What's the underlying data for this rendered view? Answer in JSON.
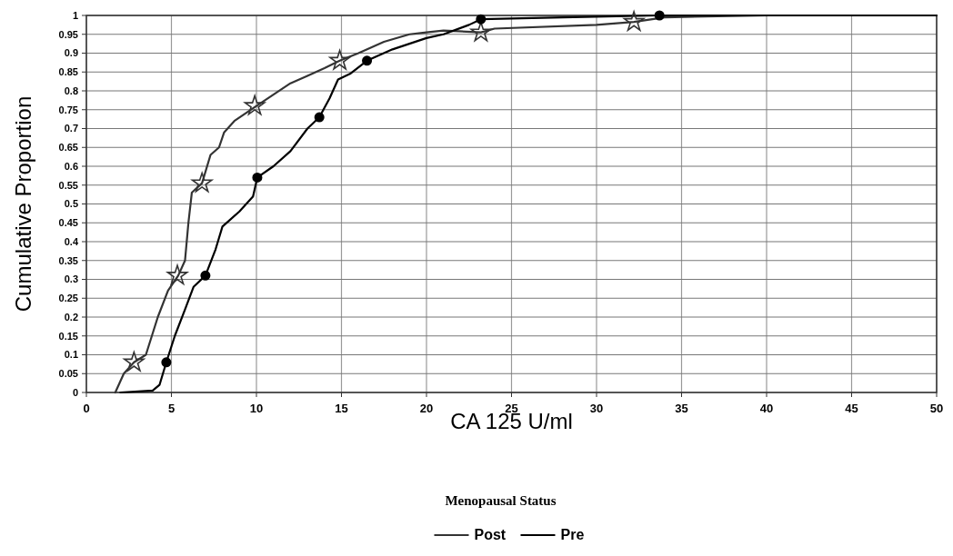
{
  "chart_data": {
    "type": "line",
    "xlabel": "CA 125 U/ml",
    "ylabel": "Cumulative Proportion",
    "legend_title": "Menopausal Status",
    "legend": "bottom",
    "grid": true,
    "xlim": [
      0,
      50
    ],
    "xticks": [
      0,
      5,
      10,
      15,
      20,
      25,
      30,
      35,
      40,
      45,
      50
    ],
    "ylim": [
      0,
      1
    ],
    "yticks": [
      0,
      0.05,
      0.1,
      0.15,
      0.2,
      0.25,
      0.3,
      0.35,
      0.4,
      0.45,
      0.5,
      0.55,
      0.6,
      0.65,
      0.7,
      0.75,
      0.8,
      0.85,
      0.9,
      0.95,
      1
    ],
    "series": [
      {
        "name": "Post",
        "color": "#333333",
        "type": "line",
        "x": [
          1.7,
          2.2,
          2.8,
          3.5,
          4.2,
          4.8,
          5.4,
          5.8,
          6.0,
          6.2,
          6.8,
          7.3,
          7.8,
          8.1,
          8.7,
          10,
          11,
          12,
          13,
          14,
          14.9,
          16,
          17.5,
          19,
          20,
          21,
          23.2,
          24,
          30,
          32.2,
          34,
          40,
          50
        ],
        "values": [
          0,
          0.05,
          0.08,
          0.1,
          0.2,
          0.27,
          0.31,
          0.35,
          0.45,
          0.53,
          0.555,
          0.63,
          0.65,
          0.69,
          0.72,
          0.76,
          0.79,
          0.82,
          0.84,
          0.86,
          0.88,
          0.9,
          0.93,
          0.95,
          0.955,
          0.96,
          0.955,
          0.965,
          0.975,
          0.983,
          0.995,
          1,
          1
        ]
      },
      {
        "name": "Pre",
        "color": "#000000",
        "type": "line",
        "x": [
          2,
          3.9,
          4.3,
          4.7,
          5.2,
          5.8,
          6.3,
          7,
          7.6,
          8,
          9,
          9.8,
          10.05,
          11,
          12,
          13,
          13.7,
          14.3,
          14.8,
          15.5,
          16.5,
          18,
          20,
          21,
          22.5,
          23.2,
          28,
          33.7,
          50
        ],
        "values": [
          0,
          0.005,
          0.02,
          0.08,
          0.15,
          0.22,
          0.28,
          0.31,
          0.38,
          0.44,
          0.48,
          0.52,
          0.57,
          0.6,
          0.64,
          0.7,
          0.73,
          0.78,
          0.83,
          0.845,
          0.88,
          0.91,
          0.94,
          0.95,
          0.975,
          0.99,
          0.995,
          1,
          1
        ]
      },
      {
        "color": "#333333",
        "type": "scatter",
        "marker": "star",
        "x": [
          2.8,
          5.35,
          6.8,
          9.9,
          14.9,
          23.2,
          32.2
        ],
        "values": [
          0.08,
          0.31,
          0.555,
          0.76,
          0.88,
          0.955,
          0.983
        ]
      },
      {
        "color": "#000000",
        "type": "scatter",
        "marker": "circle",
        "x": [
          4.7,
          7.0,
          10.05,
          13.7,
          16.5,
          23.2,
          33.7
        ],
        "values": [
          0.08,
          0.31,
          0.57,
          0.73,
          0.88,
          0.99,
          1
        ]
      }
    ]
  }
}
